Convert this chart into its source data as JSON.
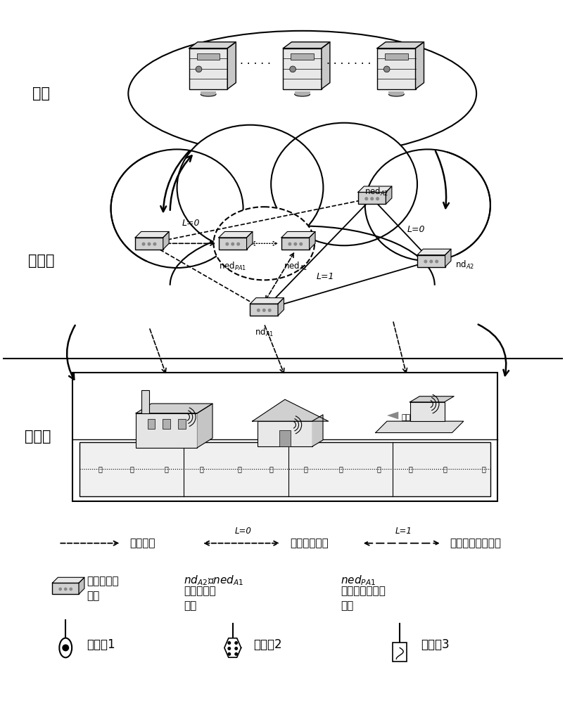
{
  "bg_color": "#ffffff",
  "layer_labels": {
    "cloud": "云层",
    "edge": "边缘层",
    "device": "设备层"
  },
  "dots": ".......",
  "node_names": {
    "nedPA1": "ned",
    "nedA1": "ned",
    "nedA2": "ned",
    "ndA1": "nd",
    "ndA2": "nd"
  },
  "legend_line1": [
    "管理关系",
    "异常的交互链",
    "可能异常的交互链"
  ],
  "legend_line2_labels": [
    "正常的边缘\n节点",
    "nd",
    "ned",
    "异常的边缘\n节点",
    "ned",
    "可能异常的边缘\n节点"
  ],
  "legend_line3": [
    "主属性1",
    "主属性2",
    "主属性3"
  ],
  "L0": "L=0",
  "L1": "L=1"
}
